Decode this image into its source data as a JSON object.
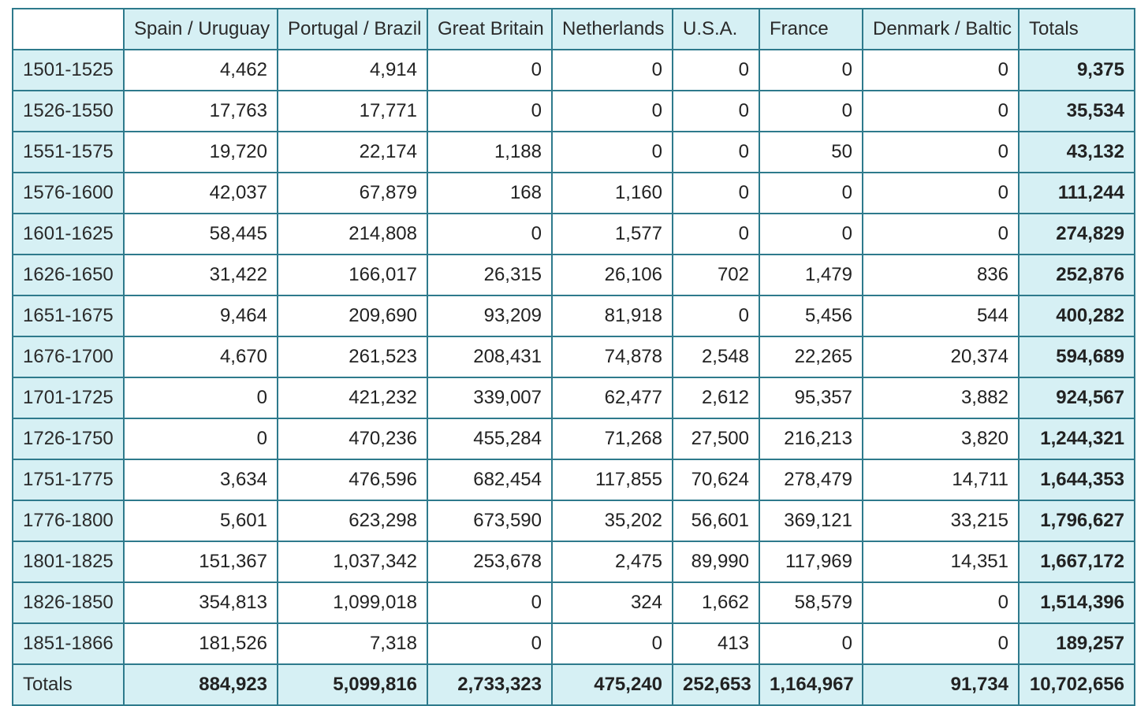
{
  "table": {
    "corner": "",
    "columns": [
      "Spain / Uruguay",
      "Portugal / Brazil",
      "Great Britain",
      "Netherlands",
      "U.S.A.",
      "France",
      "Denmark / Baltic",
      "Totals"
    ],
    "rows": [
      {
        "label": "1501-1525",
        "cells": [
          "4,462",
          "4,914",
          "0",
          "0",
          "0",
          "0",
          "0"
        ],
        "total": "9,375"
      },
      {
        "label": "1526-1550",
        "cells": [
          "17,763",
          "17,771",
          "0",
          "0",
          "0",
          "0",
          "0"
        ],
        "total": "35,534"
      },
      {
        "label": "1551-1575",
        "cells": [
          "19,720",
          "22,174",
          "1,188",
          "0",
          "0",
          "50",
          "0"
        ],
        "total": "43,132"
      },
      {
        "label": "1576-1600",
        "cells": [
          "42,037",
          "67,879",
          "168",
          "1,160",
          "0",
          "0",
          "0"
        ],
        "total": "111,244"
      },
      {
        "label": "1601-1625",
        "cells": [
          "58,445",
          "214,808",
          "0",
          "1,577",
          "0",
          "0",
          "0"
        ],
        "total": "274,829"
      },
      {
        "label": "1626-1650",
        "cells": [
          "31,422",
          "166,017",
          "26,315",
          "26,106",
          "702",
          "1,479",
          "836"
        ],
        "total": "252,876"
      },
      {
        "label": "1651-1675",
        "cells": [
          "9,464",
          "209,690",
          "93,209",
          "81,918",
          "0",
          "5,456",
          "544"
        ],
        "total": "400,282"
      },
      {
        "label": "1676-1700",
        "cells": [
          "4,670",
          "261,523",
          "208,431",
          "74,878",
          "2,548",
          "22,265",
          "20,374"
        ],
        "total": "594,689"
      },
      {
        "label": "1701-1725",
        "cells": [
          "0",
          "421,232",
          "339,007",
          "62,477",
          "2,612",
          "95,357",
          "3,882"
        ],
        "total": "924,567"
      },
      {
        "label": "1726-1750",
        "cells": [
          "0",
          "470,236",
          "455,284",
          "71,268",
          "27,500",
          "216,213",
          "3,820"
        ],
        "total": "1,244,321"
      },
      {
        "label": "1751-1775",
        "cells": [
          "3,634",
          "476,596",
          "682,454",
          "117,855",
          "70,624",
          "278,479",
          "14,711"
        ],
        "total": "1,644,353"
      },
      {
        "label": "1776-1800",
        "cells": [
          "5,601",
          "623,298",
          "673,590",
          "35,202",
          "56,601",
          "369,121",
          "33,215"
        ],
        "total": "1,796,627"
      },
      {
        "label": "1801-1825",
        "cells": [
          "151,367",
          "1,037,342",
          "253,678",
          "2,475",
          "89,990",
          "117,969",
          "14,351"
        ],
        "total": "1,667,172"
      },
      {
        "label": "1826-1850",
        "cells": [
          "354,813",
          "1,099,018",
          "0",
          "324",
          "1,662",
          "58,579",
          "0"
        ],
        "total": "1,514,396"
      },
      {
        "label": "1851-1866",
        "cells": [
          "181,526",
          "7,318",
          "0",
          "0",
          "413",
          "0",
          "0"
        ],
        "total": "189,257"
      }
    ],
    "footer": {
      "label": "Totals",
      "cells": [
        "884,923",
        "5,099,816",
        "2,733,323",
        "475,240",
        "252,653",
        "1,164,967",
        "91,734"
      ],
      "total": "10,702,656"
    }
  },
  "colors": {
    "header_background": "#d6f0f4",
    "border": "#2e7a8c",
    "cell_background": "#ffffff"
  }
}
